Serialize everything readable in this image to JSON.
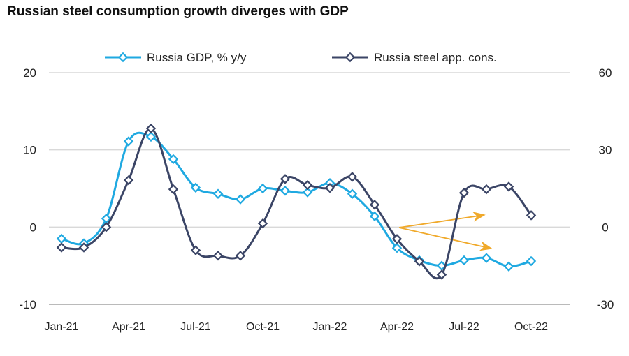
{
  "chart_data": {
    "type": "line",
    "title": "Russian steel consumption growth diverges with GDP",
    "x": [
      "Jan-21",
      "Feb-21",
      "Mar-21",
      "Apr-21",
      "May-21",
      "Jun-21",
      "Jul-21",
      "Aug-21",
      "Sep-21",
      "Oct-21",
      "Nov-21",
      "Dec-21",
      "Jan-22",
      "Feb-22",
      "Mar-22",
      "Apr-22",
      "May-22",
      "Jun-22",
      "Jul-22",
      "Aug-22",
      "Sep-22",
      "Oct-22"
    ],
    "xticks": [
      "Jan-21",
      "Apr-21",
      "Jul-21",
      "Oct-21",
      "Jan-22",
      "Apr-22",
      "Jul-22",
      "Oct-22"
    ],
    "y_left": {
      "range": [
        -10,
        20
      ],
      "ticks": [
        "-10",
        "0",
        "10",
        "20"
      ]
    },
    "y_right": {
      "range": [
        -30,
        60
      ],
      "ticks": [
        "-30",
        "0",
        "30",
        "60"
      ]
    },
    "grid": "horizontal",
    "legend": "top",
    "series": [
      {
        "name": "Russia GDP, % y/y",
        "axis": "left",
        "color": "#1fa9e1",
        "values": [
          -1.5,
          -2.1,
          1.1,
          11.1,
          11.7,
          8.8,
          5.1,
          4.3,
          3.6,
          5.0,
          4.7,
          4.5,
          5.7,
          4.3,
          1.4,
          -2.7,
          -4.3,
          -5.0,
          -4.3,
          -4.0,
          -5.1,
          -4.4
        ]
      },
      {
        "name": "Russia steel app. cons.",
        "axis": "right",
        "color": "#3b4566",
        "values": [
          -7.9,
          -7.9,
          0,
          18.2,
          38.3,
          14.7,
          -9.0,
          -11.1,
          -11.1,
          1.4,
          18.7,
          16.3,
          15.2,
          19.5,
          8.7,
          -4.6,
          -13.3,
          -18.5,
          13.3,
          14.7,
          15.7,
          4.6
        ]
      }
    ],
    "annotations": [
      {
        "type": "arrows",
        "color": "#f0a92a",
        "count": 2
      }
    ]
  }
}
